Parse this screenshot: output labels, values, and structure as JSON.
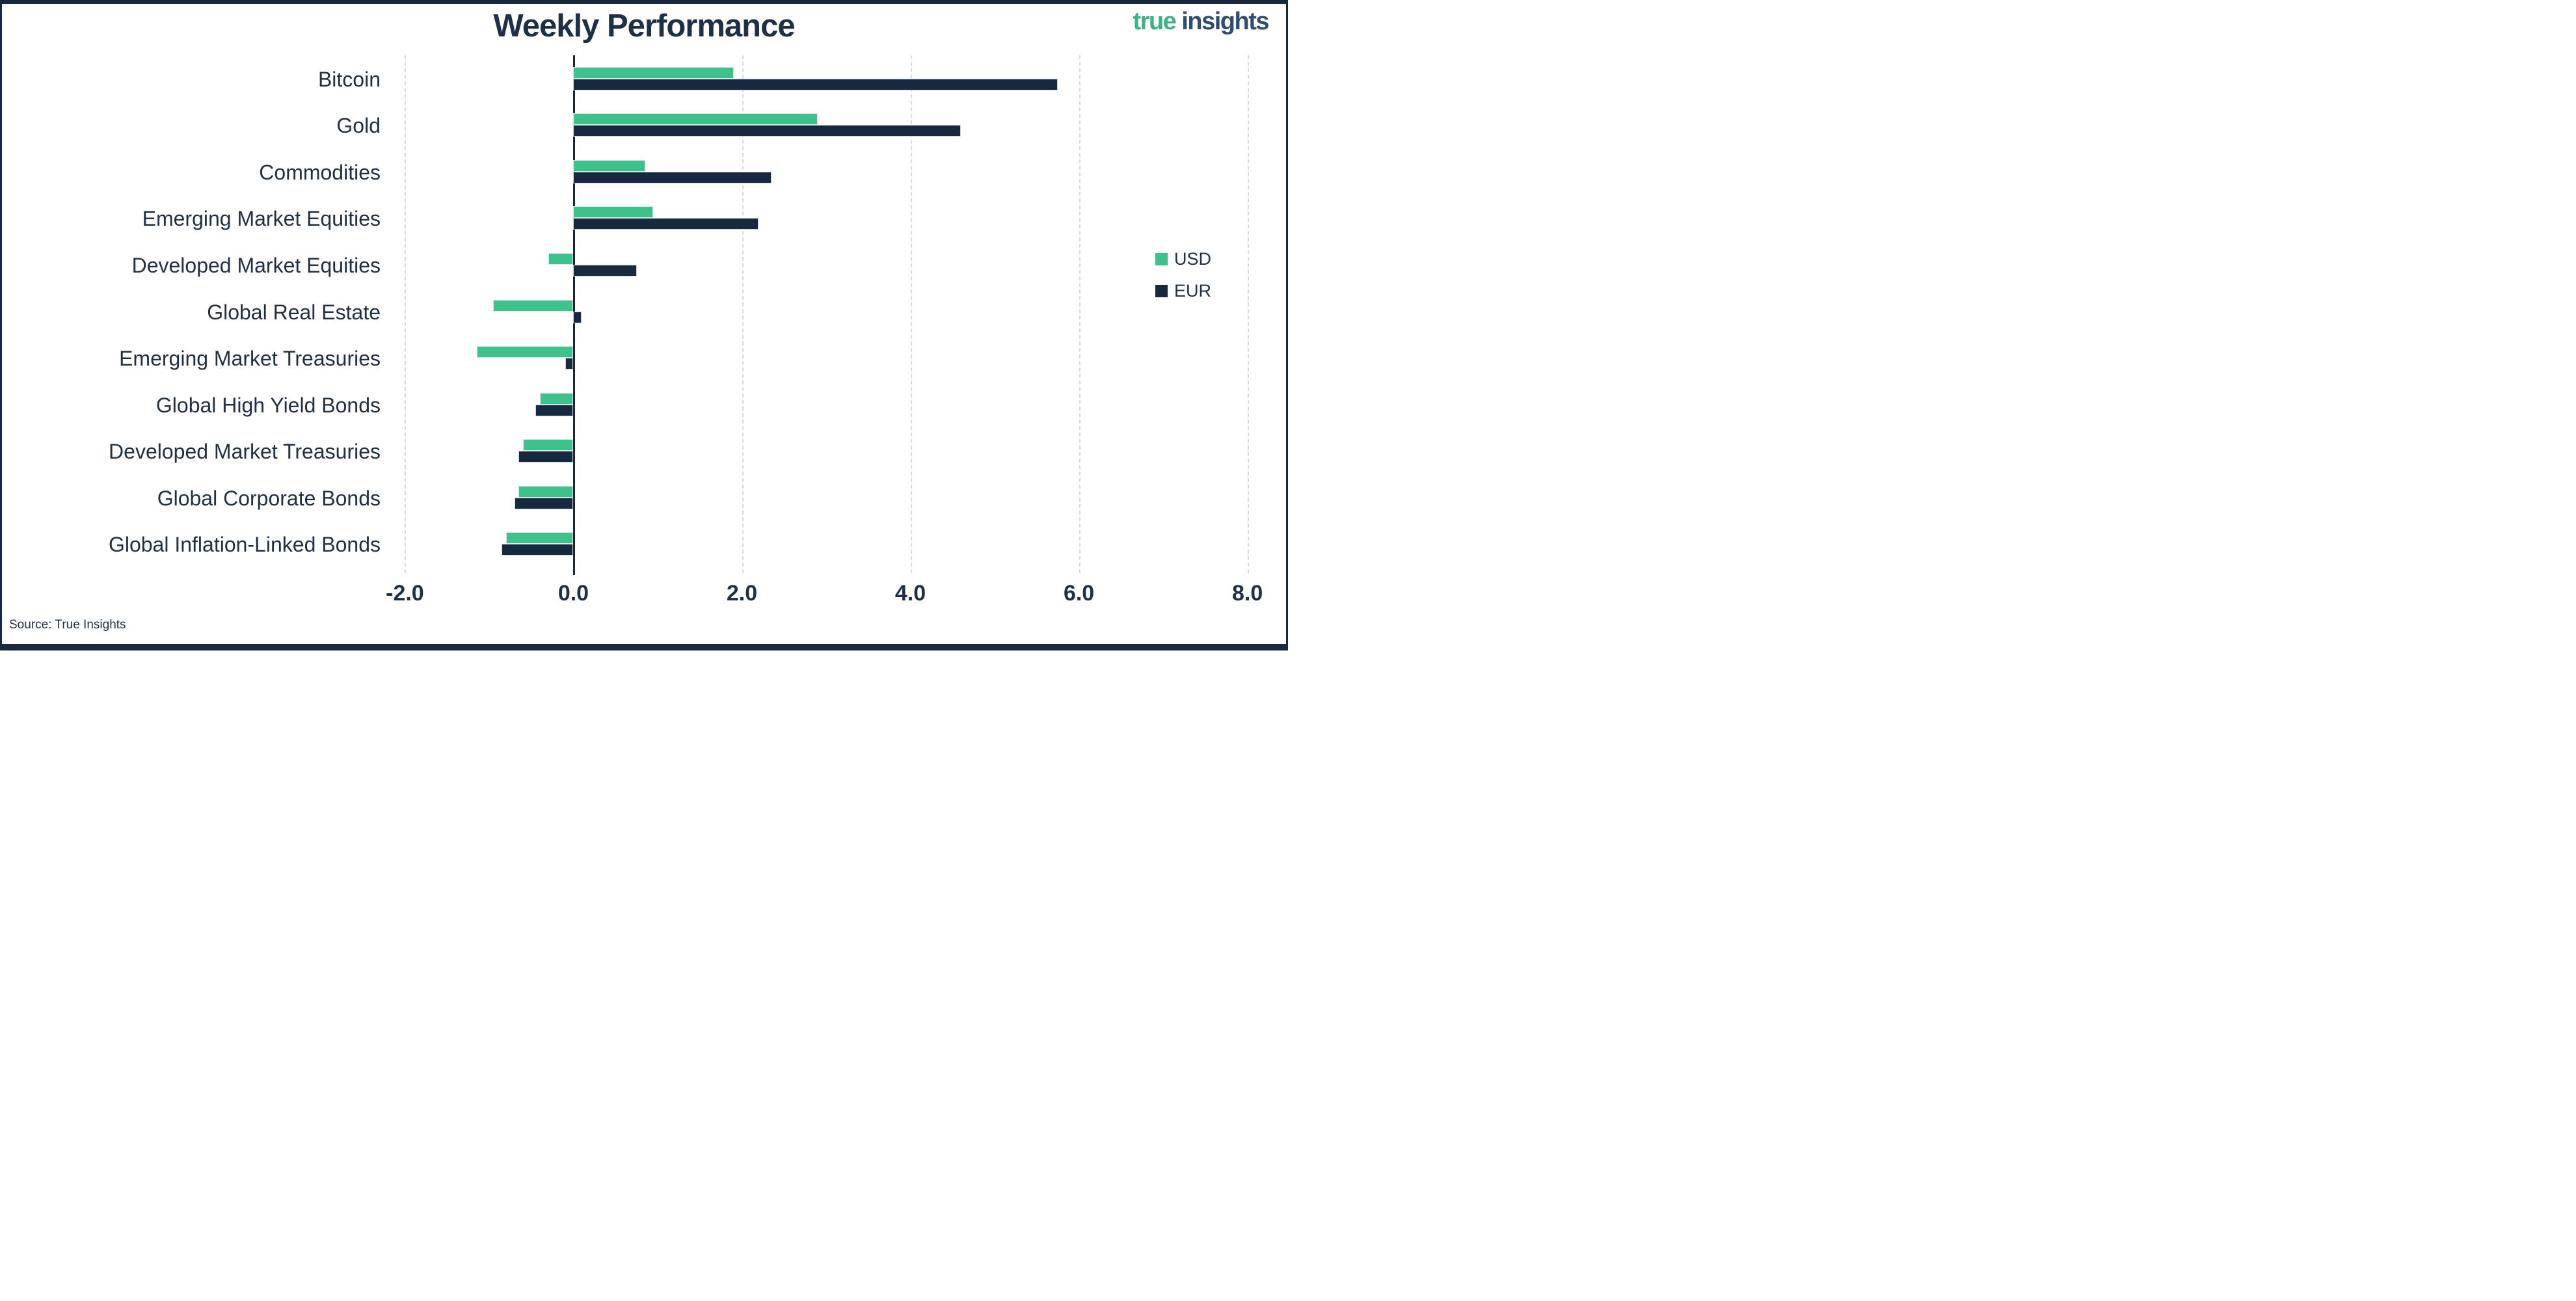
{
  "header": {
    "logo": {
      "true_text": "true",
      "insights_text": "insights"
    },
    "logo_colors": {
      "true": "#3eb182",
      "insights": "#2f4e6b"
    }
  },
  "footer": {
    "source": "Source: True Insights"
  },
  "colors": {
    "usd_bar": "#3ec28b",
    "eur_bar": "#16293e",
    "text_navy": "#1f3044",
    "gridline": "#d7dbe0",
    "frame_border": "#16293e"
  },
  "chart_data": {
    "type": "bar",
    "orientation": "horizontal",
    "title": "Weekly Performance",
    "categories": [
      "Bitcoin",
      "Gold",
      "Commodities",
      "Emerging Market Equities",
      "Developed Market Equities",
      "Global Real Estate",
      "Emerging Market Treasuries",
      "Global High Yield Bonds",
      "Developed Market Treasuries",
      "Global Corporate Bonds",
      "Global Inflation-Linked Bonds"
    ],
    "series": [
      {
        "name": "USD",
        "color": "#3ec28b",
        "values": [
          1.9,
          2.9,
          0.85,
          0.95,
          -0.3,
          -0.95,
          -1.15,
          -0.4,
          -0.6,
          -0.65,
          -0.8
        ]
      },
      {
        "name": "EUR",
        "color": "#16293e",
        "values": [
          5.75,
          4.6,
          2.35,
          2.2,
          0.75,
          0.1,
          -0.1,
          -0.45,
          -0.65,
          -0.7,
          -0.85
        ]
      }
    ],
    "xlim": [
      -2.15,
      8.25
    ],
    "xticks": [
      -2,
      0,
      2,
      4,
      6,
      8
    ],
    "xtick_labels": [
      "-2.0",
      "0.0",
      "2.0",
      "4.0",
      "6.0",
      "8.0"
    ],
    "grid": "vertical-dashed",
    "legend_position": "right",
    "xlabel": "",
    "ylabel": ""
  }
}
